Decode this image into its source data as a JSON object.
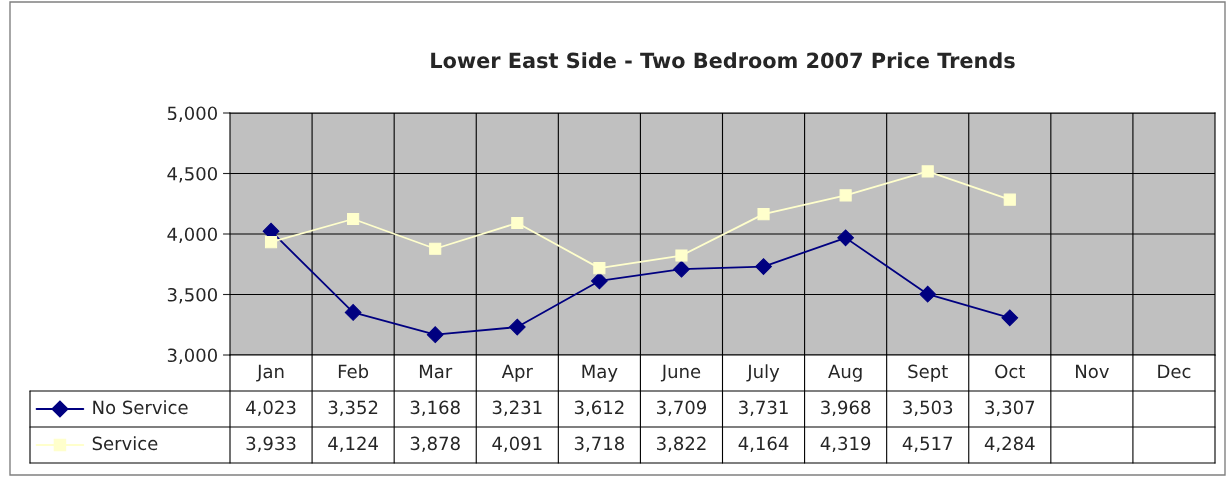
{
  "chart_data": {
    "type": "line",
    "title": "Lower East Side - Two Bedroom 2007 Price Trends",
    "categories": [
      "Jan",
      "Feb",
      "Mar",
      "Apr",
      "May",
      "June",
      "July",
      "Aug",
      "Sept",
      "Oct",
      "Nov",
      "Dec"
    ],
    "series": [
      {
        "name": "No Service",
        "color": "#000080",
        "marker": "diamond",
        "values": [
          4023,
          3352,
          3168,
          3231,
          3612,
          3709,
          3731,
          3968,
          3503,
          3307,
          null,
          null
        ],
        "value_labels": [
          "4,023",
          "3,352",
          "3,168",
          "3,231",
          "3,612",
          "3,709",
          "3,731",
          "3,968",
          "3,503",
          "3,307",
          null,
          null
        ]
      },
      {
        "name": "Service",
        "color": "#ffffcc",
        "marker": "square",
        "values": [
          3933,
          4124,
          3878,
          4091,
          3718,
          3822,
          4164,
          4319,
          4517,
          4284,
          null,
          null
        ],
        "value_labels": [
          "3,933",
          "4,124",
          "3,878",
          "4,091",
          "3,718",
          "3,822",
          "4,164",
          "4,319",
          "4,517",
          "4,284",
          null,
          null
        ]
      }
    ],
    "ylim": [
      3000,
      5000
    ],
    "yticks": [
      {
        "value": 3000,
        "label": "3,000"
      },
      {
        "value": 3500,
        "label": "3,500"
      },
      {
        "value": 4000,
        "label": "4,000"
      },
      {
        "value": 4500,
        "label": "4,500"
      },
      {
        "value": 5000,
        "label": "5,000"
      }
    ],
    "grid": true,
    "legend": "bottom"
  }
}
